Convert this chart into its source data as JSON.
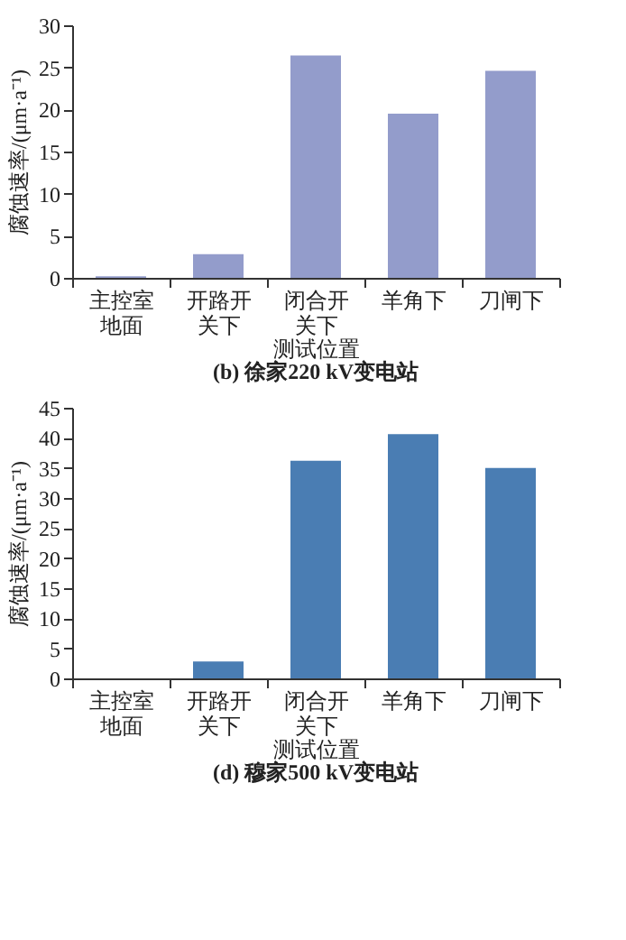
{
  "chart_data": [
    {
      "type": "bar",
      "title": "(b) 徐家220 kV变电站",
      "xlabel": "测试位置",
      "ylabel": "腐蚀速率/(μm·a⁻¹)",
      "categories": [
        "主控室地面",
        "开路开关下",
        "闭合开关下",
        "羊角下",
        "刀闸下"
      ],
      "values": [
        0.2,
        2.8,
        26.4,
        19.5,
        24.6
      ],
      "color": "#939ccb",
      "ylim": [
        0,
        30
      ],
      "yticks": [
        0,
        5,
        10,
        15,
        20,
        25,
        30
      ],
      "grid": false
    },
    {
      "type": "bar",
      "title": "(d) 穆家500 kV变电站",
      "xlabel": "测试位置",
      "ylabel": "腐蚀速率/(μm·a⁻¹)",
      "categories": [
        "主控室地面",
        "开路开关下",
        "闭合开关下",
        "羊角下",
        "刀闸下"
      ],
      "values": [
        0,
        2.8,
        36.2,
        40.6,
        35.0
      ],
      "color": "#4a7db3",
      "ylim": [
        0,
        45
      ],
      "yticks": [
        0,
        5,
        10,
        15,
        20,
        25,
        30,
        35,
        40,
        45
      ],
      "grid": false
    }
  ]
}
